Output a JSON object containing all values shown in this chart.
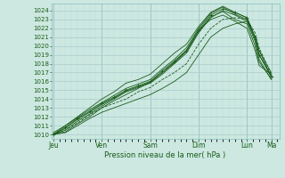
{
  "xlabel": "Pression niveau de la mer( hPa )",
  "bg_color": "#cce8e0",
  "grid_major_color": "#aacccc",
  "grid_minor_color": "#bbdddd",
  "line_color": "#1a5c1a",
  "ylim": [
    1009.5,
    1024.8
  ],
  "yticks": [
    1010,
    1011,
    1012,
    1013,
    1014,
    1015,
    1016,
    1017,
    1018,
    1019,
    1020,
    1021,
    1022,
    1023,
    1024
  ],
  "x_day_labels": [
    "Jeu",
    "Ven",
    "Sam",
    "Dim",
    "Lun",
    "Ma"
  ],
  "x_day_positions": [
    0,
    24,
    48,
    72,
    96,
    108
  ],
  "xlim": [
    -1,
    112
  ],
  "lines": [
    {
      "x": [
        0,
        6,
        12,
        18,
        24,
        30,
        36,
        42,
        48,
        54,
        60,
        66,
        72,
        78,
        84,
        90,
        96,
        100,
        102,
        108
      ],
      "y": [
        1010.0,
        1010.8,
        1011.8,
        1012.6,
        1013.5,
        1014.2,
        1015.0,
        1015.5,
        1016.0,
        1017.2,
        1018.3,
        1019.5,
        1021.8,
        1023.5,
        1024.2,
        1023.8,
        1023.2,
        1021.0,
        1019.0,
        1016.5
      ],
      "style": "marker"
    },
    {
      "x": [
        0,
        6,
        12,
        18,
        24,
        30,
        36,
        42,
        48,
        54,
        60,
        66,
        72,
        78,
        84,
        90,
        96,
        100,
        102,
        108
      ],
      "y": [
        1010.0,
        1010.5,
        1011.5,
        1012.3,
        1013.2,
        1014.0,
        1014.8,
        1015.3,
        1015.8,
        1016.8,
        1018.0,
        1019.2,
        1021.5,
        1023.2,
        1024.0,
        1023.5,
        1022.8,
        1020.5,
        1018.5,
        1016.2
      ],
      "style": "solid"
    },
    {
      "x": [
        0,
        6,
        12,
        18,
        24,
        30,
        36,
        42,
        48,
        54,
        60,
        66,
        72,
        78,
        84,
        90,
        96,
        100,
        102,
        108
      ],
      "y": [
        1010.0,
        1010.3,
        1011.2,
        1012.0,
        1013.0,
        1013.8,
        1014.5,
        1015.2,
        1015.9,
        1017.0,
        1018.2,
        1019.5,
        1021.8,
        1023.0,
        1023.5,
        1022.8,
        1022.0,
        1019.5,
        1017.8,
        1016.8
      ],
      "style": "solid"
    },
    {
      "x": [
        0,
        6,
        12,
        18,
        24,
        30,
        36,
        42,
        48,
        54,
        60,
        66,
        72,
        78,
        84,
        90,
        96,
        100,
        102,
        108
      ],
      "y": [
        1010.0,
        1010.7,
        1011.7,
        1012.5,
        1013.4,
        1014.1,
        1014.9,
        1015.4,
        1015.9,
        1017.0,
        1018.1,
        1019.4,
        1021.6,
        1023.3,
        1023.9,
        1023.0,
        1022.5,
        1020.0,
        1018.2,
        1016.3
      ],
      "style": "solid"
    },
    {
      "x": [
        0,
        6,
        12,
        18,
        24,
        30,
        36,
        42,
        48,
        54,
        60,
        66,
        72,
        78,
        84,
        90,
        96,
        100,
        102,
        108
      ],
      "y": [
        1010.2,
        1011.0,
        1011.9,
        1012.8,
        1013.6,
        1014.4,
        1015.2,
        1015.7,
        1016.2,
        1017.4,
        1018.5,
        1019.8,
        1022.0,
        1023.7,
        1024.4,
        1023.6,
        1023.0,
        1020.8,
        1019.0,
        1016.7
      ],
      "style": "solid"
    },
    {
      "x": [
        0,
        6,
        12,
        18,
        24,
        30,
        36,
        42,
        48,
        54,
        60,
        66,
        72,
        78,
        84,
        90,
        96,
        100,
        102,
        108
      ],
      "y": [
        1010.0,
        1011.0,
        1012.0,
        1013.0,
        1014.0,
        1014.8,
        1015.8,
        1016.2,
        1016.8,
        1018.0,
        1019.2,
        1020.2,
        1022.2,
        1023.8,
        1024.5,
        1023.8,
        1023.2,
        1021.0,
        1019.5,
        1017.0
      ],
      "style": "solid"
    },
    {
      "x": [
        0,
        6,
        12,
        18,
        24,
        30,
        36,
        42,
        48,
        54,
        60,
        66,
        72,
        78,
        84,
        90,
        96,
        100,
        102,
        108
      ],
      "y": [
        1010.0,
        1010.2,
        1011.0,
        1011.8,
        1012.5,
        1013.0,
        1013.5,
        1014.0,
        1014.5,
        1015.2,
        1016.0,
        1017.0,
        1019.0,
        1021.0,
        1022.0,
        1022.5,
        1022.8,
        1021.0,
        1019.5,
        1016.5
      ],
      "style": "solid"
    },
    {
      "x": [
        0,
        6,
        12,
        18,
        24,
        30,
        36,
        42,
        48,
        54,
        60,
        66,
        72,
        78,
        84,
        90,
        96,
        100,
        102,
        108
      ],
      "y": [
        1010.0,
        1010.5,
        1011.3,
        1012.2,
        1013.0,
        1013.5,
        1014.0,
        1014.8,
        1015.3,
        1016.2,
        1017.0,
        1018.0,
        1020.2,
        1022.0,
        1023.0,
        1023.2,
        1023.0,
        1021.5,
        1019.8,
        1016.8
      ],
      "style": "dashed"
    }
  ]
}
